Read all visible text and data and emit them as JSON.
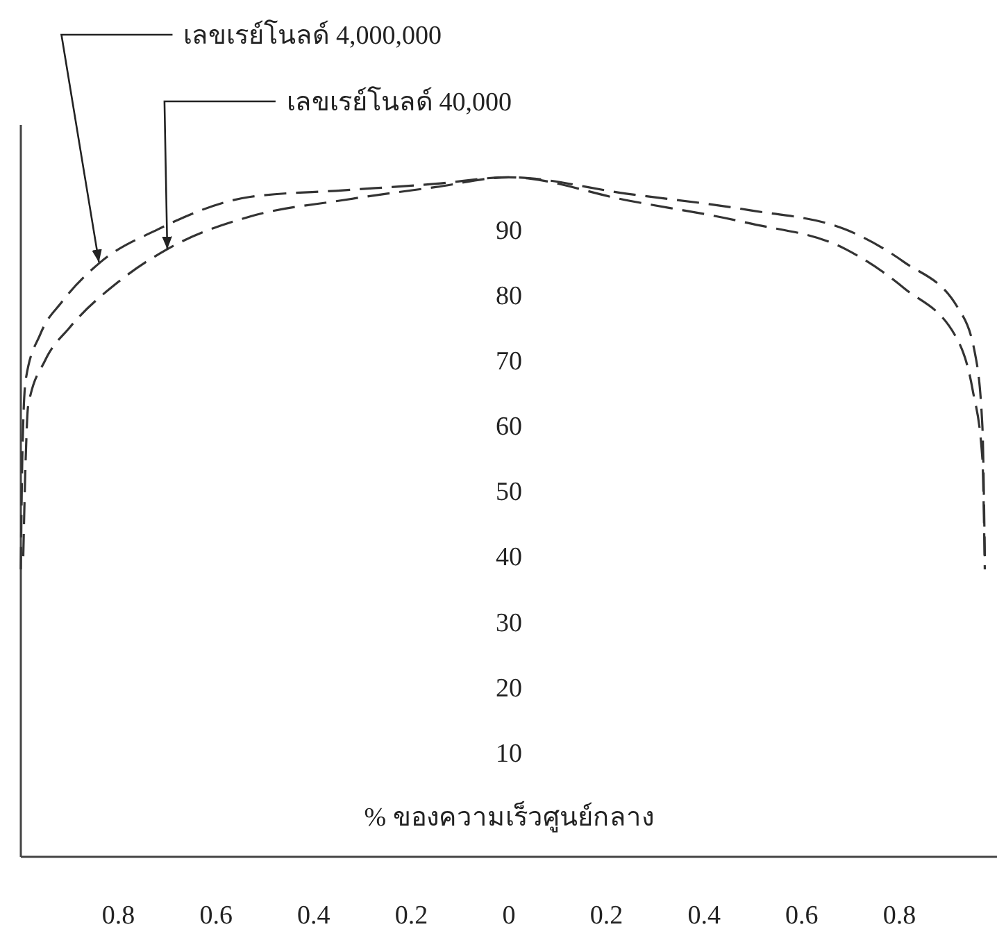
{
  "chart_data": {
    "type": "line",
    "ylabel": "% ของความเร็วศูนย์กลาง",
    "line_style": "dashed",
    "xlim": [
      -1,
      1
    ],
    "ylim": [
      -6,
      106
    ],
    "xticks": [
      {
        "value": -0.8,
        "label": "0.8"
      },
      {
        "value": -0.6,
        "label": "0.6"
      },
      {
        "value": -0.4,
        "label": "0.4"
      },
      {
        "value": -0.2,
        "label": "0.2"
      },
      0,
      0.2,
      0.4,
      0.6,
      0.8
    ],
    "yticks": [
      10,
      20,
      30,
      40,
      50,
      60,
      70,
      80,
      90
    ],
    "series": [
      {
        "color": "#333333",
        "x": [
          -1,
          -0.997,
          -0.99,
          -0.96,
          -0.915,
          -0.837,
          -0.72,
          -0.53,
          -0.34,
          -0.15,
          0,
          0.24,
          0.49,
          0.69,
          0.81,
          0.92,
          0.955,
          0.97,
          0.975
        ],
        "values": [
          38,
          55,
          67,
          74,
          79,
          85,
          90,
          95,
          96,
          97,
          98,
          95.5,
          93,
          90,
          85,
          78,
          71,
          60,
          40
        ]
      },
      {
        "color": "#333333",
        "x": [
          -0.995,
          -0.99,
          -0.985,
          -0.95,
          -0.9,
          -0.8,
          -0.7,
          -0.53,
          -0.34,
          -0.15,
          0,
          0.24,
          0.49,
          0.69,
          0.81,
          0.92,
          0.95,
          0.97,
          0.975
        ],
        "values": [
          40,
          55,
          63,
          70,
          75,
          82,
          87,
          92,
          94.5,
          96.5,
          98,
          94.5,
          91,
          87,
          81,
          73,
          65.5,
          55,
          38
        ]
      }
    ],
    "annotations": [
      {
        "text": "เลขเรย์โนลด์ 4,000,000",
        "x": -0.84,
        "y": 85
      },
      {
        "text": "เลขเรย์โนลด์ 40,000",
        "x": -0.7,
        "y": 87
      }
    ]
  }
}
